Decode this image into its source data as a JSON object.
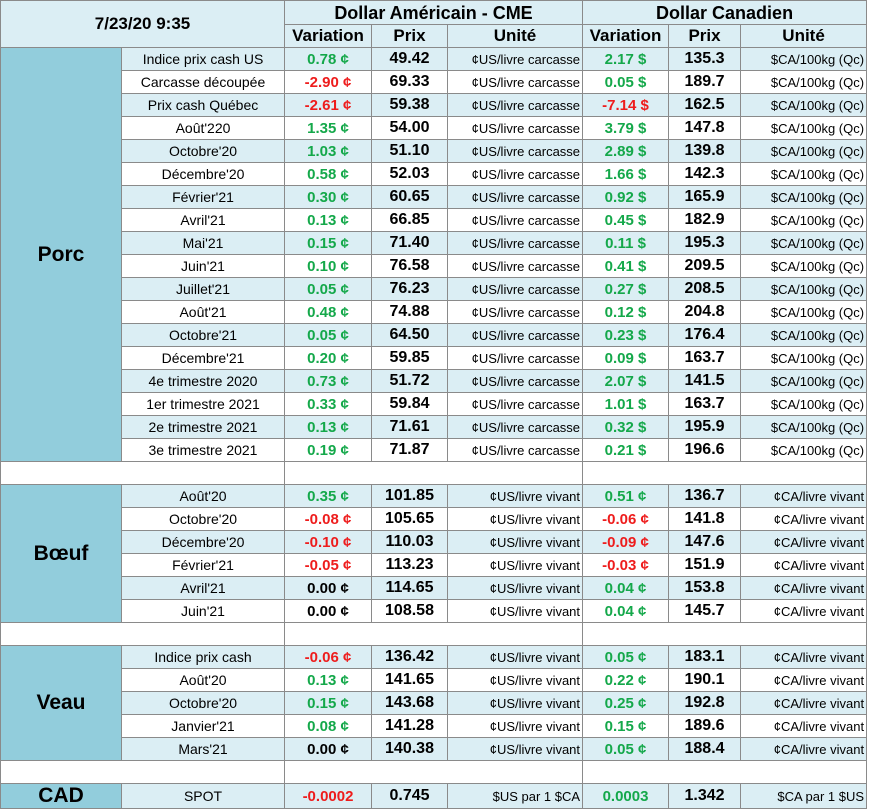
{
  "header": {
    "date": "7/23/20 9:35",
    "usd_title": "Dollar Américain - CME",
    "cad_title": "Dollar Canadien",
    "col_variation": "Variation",
    "col_prix": "Prix",
    "col_unite": "Unité"
  },
  "colors": {
    "positive": "#14a84a",
    "negative": "#ee1c1c",
    "group_bg": "#92cddc",
    "row_alt": "#dbeef4"
  },
  "porc": {
    "label": "Porc",
    "rows": [
      {
        "label": "Indice prix cash US",
        "usd_var": "0.78 ¢",
        "usd_price": "49.42",
        "usd_unit": "¢US/livre carcasse",
        "cad_var": "2.17 $",
        "cad_price": "135.3",
        "cad_unit": "$CA/100kg (Qc)",
        "usd_sign": "pos",
        "cad_sign": "pos"
      },
      {
        "label": "Carcasse découpée",
        "usd_var": "-2.90 ¢",
        "usd_price": "69.33",
        "usd_unit": "¢US/livre carcasse",
        "cad_var": "0.05 $",
        "cad_price": "189.7",
        "cad_unit": "$CA/100kg (Qc)",
        "usd_sign": "neg",
        "cad_sign": "pos"
      },
      {
        "label": "Prix cash Québec",
        "usd_var": "-2.61 ¢",
        "usd_price": "59.38",
        "usd_unit": "¢US/livre carcasse",
        "cad_var": "-7.14 $",
        "cad_price": "162.5",
        "cad_unit": "$CA/100kg (Qc)",
        "usd_sign": "neg",
        "cad_sign": "neg"
      },
      {
        "label": "Août'220",
        "usd_var": "1.35 ¢",
        "usd_price": "54.00",
        "usd_unit": "¢US/livre carcasse",
        "cad_var": "3.79 $",
        "cad_price": "147.8",
        "cad_unit": "$CA/100kg (Qc)",
        "usd_sign": "pos",
        "cad_sign": "pos"
      },
      {
        "label": "Octobre'20",
        "usd_var": "1.03 ¢",
        "usd_price": "51.10",
        "usd_unit": "¢US/livre carcasse",
        "cad_var": "2.89 $",
        "cad_price": "139.8",
        "cad_unit": "$CA/100kg (Qc)",
        "usd_sign": "pos",
        "cad_sign": "pos"
      },
      {
        "label": "Décembre'20",
        "usd_var": "0.58 ¢",
        "usd_price": "52.03",
        "usd_unit": "¢US/livre carcasse",
        "cad_var": "1.66 $",
        "cad_price": "142.3",
        "cad_unit": "$CA/100kg (Qc)",
        "usd_sign": "pos",
        "cad_sign": "pos"
      },
      {
        "label": "Février'21",
        "usd_var": "0.30 ¢",
        "usd_price": "60.65",
        "usd_unit": "¢US/livre carcasse",
        "cad_var": "0.92 $",
        "cad_price": "165.9",
        "cad_unit": "$CA/100kg (Qc)",
        "usd_sign": "pos",
        "cad_sign": "pos"
      },
      {
        "label": "Avril'21",
        "usd_var": "0.13 ¢",
        "usd_price": "66.85",
        "usd_unit": "¢US/livre carcasse",
        "cad_var": "0.45 $",
        "cad_price": "182.9",
        "cad_unit": "$CA/100kg (Qc)",
        "usd_sign": "pos",
        "cad_sign": "pos"
      },
      {
        "label": "Mai'21",
        "usd_var": "0.15 ¢",
        "usd_price": "71.40",
        "usd_unit": "¢US/livre carcasse",
        "cad_var": "0.11 $",
        "cad_price": "195.3",
        "cad_unit": "$CA/100kg (Qc)",
        "usd_sign": "pos",
        "cad_sign": "pos"
      },
      {
        "label": "Juin'21",
        "usd_var": "0.10 ¢",
        "usd_price": "76.58",
        "usd_unit": "¢US/livre carcasse",
        "cad_var": "0.41 $",
        "cad_price": "209.5",
        "cad_unit": "$CA/100kg (Qc)",
        "usd_sign": "pos",
        "cad_sign": "pos"
      },
      {
        "label": "Juillet'21",
        "usd_var": "0.05 ¢",
        "usd_price": "76.23",
        "usd_unit": "¢US/livre carcasse",
        "cad_var": "0.27 $",
        "cad_price": "208.5",
        "cad_unit": "$CA/100kg (Qc)",
        "usd_sign": "pos",
        "cad_sign": "pos"
      },
      {
        "label": "Août'21",
        "usd_var": "0.48 ¢",
        "usd_price": "74.88",
        "usd_unit": "¢US/livre carcasse",
        "cad_var": "0.12 $",
        "cad_price": "204.8",
        "cad_unit": "$CA/100kg (Qc)",
        "usd_sign": "pos",
        "cad_sign": "pos"
      },
      {
        "label": "Octobre'21",
        "usd_var": "0.05 ¢",
        "usd_price": "64.50",
        "usd_unit": "¢US/livre carcasse",
        "cad_var": "0.23 $",
        "cad_price": "176.4",
        "cad_unit": "$CA/100kg (Qc)",
        "usd_sign": "pos",
        "cad_sign": "pos"
      },
      {
        "label": "Décembre'21",
        "usd_var": "0.20 ¢",
        "usd_price": "59.85",
        "usd_unit": "¢US/livre carcasse",
        "cad_var": "0.09 $",
        "cad_price": "163.7",
        "cad_unit": "$CA/100kg (Qc)",
        "usd_sign": "pos",
        "cad_sign": "pos"
      },
      {
        "label": "4e trimestre 2020",
        "usd_var": "0.73 ¢",
        "usd_price": "51.72",
        "usd_unit": "¢US/livre carcasse",
        "cad_var": "2.07 $",
        "cad_price": "141.5",
        "cad_unit": "$CA/100kg (Qc)",
        "usd_sign": "pos",
        "cad_sign": "pos"
      },
      {
        "label": "1er trimestre 2021",
        "usd_var": "0.33 ¢",
        "usd_price": "59.84",
        "usd_unit": "¢US/livre carcasse",
        "cad_var": "1.01 $",
        "cad_price": "163.7",
        "cad_unit": "$CA/100kg (Qc)",
        "usd_sign": "pos",
        "cad_sign": "pos"
      },
      {
        "label": "2e trimestre 2021",
        "usd_var": "0.13 ¢",
        "usd_price": "71.61",
        "usd_unit": "¢US/livre carcasse",
        "cad_var": "0.32 $",
        "cad_price": "195.9",
        "cad_unit": "$CA/100kg (Qc)",
        "usd_sign": "pos",
        "cad_sign": "pos"
      },
      {
        "label": "3e trimestre 2021",
        "usd_var": "0.19 ¢",
        "usd_price": "71.87",
        "usd_unit": "¢US/livre carcasse",
        "cad_var": "0.21 $",
        "cad_price": "196.6",
        "cad_unit": "$CA/100kg (Qc)",
        "usd_sign": "pos",
        "cad_sign": "pos"
      }
    ]
  },
  "boeuf": {
    "label": "Bœuf",
    "rows": [
      {
        "label": "Août'20",
        "usd_var": "0.35 ¢",
        "usd_price": "101.85",
        "usd_unit": "¢US/livre vivant",
        "cad_var": "0.51 ¢",
        "cad_price": "136.7",
        "cad_unit": "¢CA/livre vivant",
        "usd_sign": "pos",
        "cad_sign": "pos"
      },
      {
        "label": "Octobre'20",
        "usd_var": "-0.08 ¢",
        "usd_price": "105.65",
        "usd_unit": "¢US/livre vivant",
        "cad_var": "-0.06 ¢",
        "cad_price": "141.8",
        "cad_unit": "¢CA/livre vivant",
        "usd_sign": "neg",
        "cad_sign": "neg"
      },
      {
        "label": "Décembre'20",
        "usd_var": "-0.10 ¢",
        "usd_price": "110.03",
        "usd_unit": "¢US/livre vivant",
        "cad_var": "-0.09 ¢",
        "cad_price": "147.6",
        "cad_unit": "¢CA/livre vivant",
        "usd_sign": "neg",
        "cad_sign": "neg"
      },
      {
        "label": "Février'21",
        "usd_var": "-0.05 ¢",
        "usd_price": "113.23",
        "usd_unit": "¢US/livre vivant",
        "cad_var": "-0.03 ¢",
        "cad_price": "151.9",
        "cad_unit": "¢CA/livre vivant",
        "usd_sign": "neg",
        "cad_sign": "neg"
      },
      {
        "label": "Avril'21",
        "usd_var": "0.00 ¢",
        "usd_price": "114.65",
        "usd_unit": "¢US/livre vivant",
        "cad_var": "0.04 ¢",
        "cad_price": "153.8",
        "cad_unit": "¢CA/livre vivant",
        "usd_sign": "zero",
        "cad_sign": "pos"
      },
      {
        "label": "Juin'21",
        "usd_var": "0.00 ¢",
        "usd_price": "108.58",
        "usd_unit": "¢US/livre vivant",
        "cad_var": "0.04 ¢",
        "cad_price": "145.7",
        "cad_unit": "¢CA/livre vivant",
        "usd_sign": "zero",
        "cad_sign": "pos"
      }
    ]
  },
  "veau": {
    "label": "Veau",
    "rows": [
      {
        "label": "Indice prix cash",
        "usd_var": "-0.06 ¢",
        "usd_price": "136.42",
        "usd_unit": "¢US/livre vivant",
        "cad_var": "0.05 ¢",
        "cad_price": "183.1",
        "cad_unit": "¢CA/livre vivant",
        "usd_sign": "neg",
        "cad_sign": "pos"
      },
      {
        "label": "Août'20",
        "usd_var": "0.13 ¢",
        "usd_price": "141.65",
        "usd_unit": "¢US/livre vivant",
        "cad_var": "0.22 ¢",
        "cad_price": "190.1",
        "cad_unit": "¢CA/livre vivant",
        "usd_sign": "pos",
        "cad_sign": "pos"
      },
      {
        "label": "Octobre'20",
        "usd_var": "0.15 ¢",
        "usd_price": "143.68",
        "usd_unit": "¢US/livre vivant",
        "cad_var": "0.25 ¢",
        "cad_price": "192.8",
        "cad_unit": "¢CA/livre vivant",
        "usd_sign": "pos",
        "cad_sign": "pos"
      },
      {
        "label": "Janvier'21",
        "usd_var": "0.08 ¢",
        "usd_price": "141.28",
        "usd_unit": "¢US/livre vivant",
        "cad_var": "0.15 ¢",
        "cad_price": "189.6",
        "cad_unit": "¢CA/livre vivant",
        "usd_sign": "pos",
        "cad_sign": "pos"
      },
      {
        "label": "Mars'21",
        "usd_var": "0.00 ¢",
        "usd_price": "140.38",
        "usd_unit": "¢US/livre vivant",
        "cad_var": "0.05 ¢",
        "cad_price": "188.4",
        "cad_unit": "¢CA/livre vivant",
        "usd_sign": "zero",
        "cad_sign": "pos"
      }
    ]
  },
  "cad": {
    "label": "CAD",
    "row": {
      "label": "SPOT",
      "usd_var": "-0.0002",
      "usd_price": "0.745",
      "usd_unit": "$US par 1 $CA",
      "cad_var": "0.0003",
      "cad_price": "1.342",
      "cad_unit": "$CA par 1 $US",
      "usd_sign": "neg",
      "cad_sign": "pos"
    }
  }
}
